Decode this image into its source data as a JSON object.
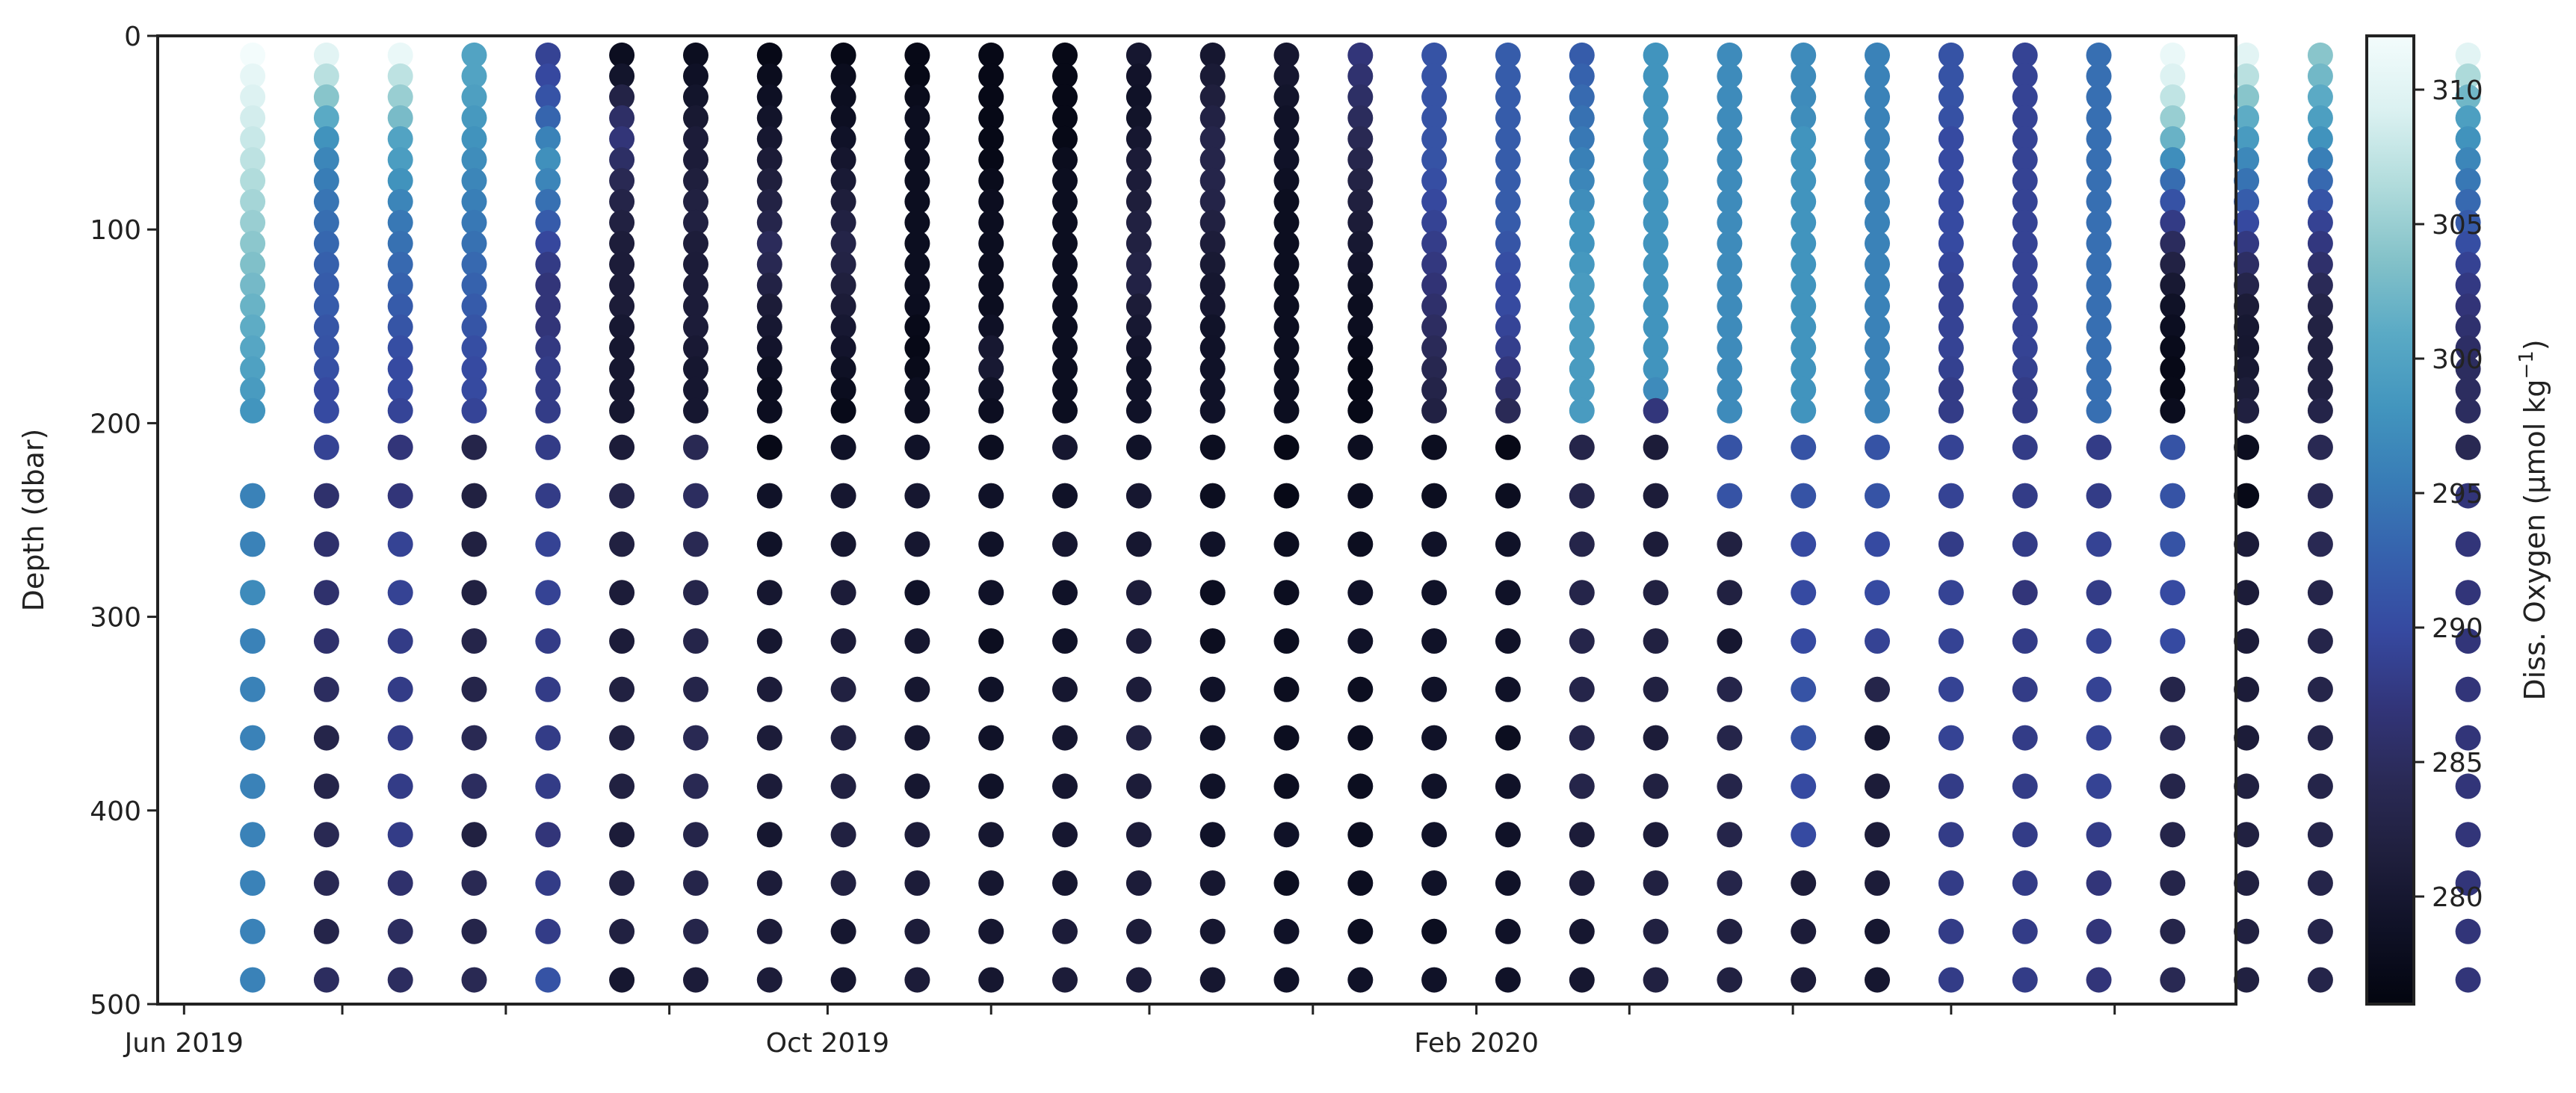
{
  "chart_data": {
    "type": "scatter",
    "title": "",
    "xlabel": "",
    "ylabel": "Depth (dbar)",
    "y_axis_inverted": true,
    "ylim": [
      0,
      500
    ],
    "yticks": [
      0,
      100,
      200,
      300,
      400,
      500
    ],
    "xlim": [
      "2019-05-27",
      "2020-06-24"
    ],
    "xticks_labeled": [
      {
        "date": "2019-06-01",
        "label": "Jun 2019"
      },
      {
        "date": "2019-10-01",
        "label": "Oct 2019"
      },
      {
        "date": "2020-02-01",
        "label": "Feb 2020"
      }
    ],
    "xticks_minor_dates": [
      "2019-07-01",
      "2019-08-01",
      "2019-09-01",
      "2019-11-01",
      "2019-12-01",
      "2020-01-01",
      "2020-03-01",
      "2020-04-01",
      "2020-05-01",
      "2020-06-01"
    ],
    "grid": false,
    "colorbar": {
      "label": "Diss. Oxygen (µmol kg",
      "label_superscript": "−1",
      "label_suffix": ")",
      "range": [
        276,
        312
      ],
      "ticks": [
        280,
        285,
        290,
        295,
        300,
        305,
        310
      ],
      "colormap": [
        "#03050f",
        "#0f1126",
        "#1f1f3d",
        "#2a2a56",
        "#32357a",
        "#3649a0",
        "#3661ad",
        "#387cb6",
        "#4295be",
        "#5aaac5",
        "#84c2c9",
        "#b1dcdc",
        "#dbf1f1",
        "#f3fcfc"
      ]
    },
    "depth_levels": [
      {
        "depth": 212.5,
        "values": [
          null,
          289,
          287,
          283,
          288,
          281,
          284,
          277,
          279,
          279,
          278,
          280,
          279,
          278,
          277,
          278,
          278,
          277,
          283,
          281,
          291,
          291,
          291,
          289,
          288,
          288,
          291,
          278,
          284,
          283,
          284
        ]
      },
      {
        "depth": 237.5,
        "values": [
          296,
          286,
          287,
          282,
          288,
          283,
          285,
          279,
          280,
          280,
          279,
          279,
          280,
          278,
          277,
          278,
          278,
          278,
          283,
          281,
          291,
          291,
          291,
          289,
          288,
          288,
          291,
          277,
          284,
          283,
          287
        ]
      },
      {
        "depth": 262.5,
        "values": [
          296,
          286,
          289,
          282,
          289,
          282,
          284,
          279,
          280,
          280,
          279,
          280,
          280,
          279,
          278,
          278,
          279,
          279,
          283,
          281,
          282,
          290,
          290,
          288,
          288,
          289,
          291,
          281,
          284,
          282,
          287
        ]
      },
      {
        "depth": 287.5,
        "values": [
          297,
          286,
          289,
          282,
          289,
          281,
          283,
          280,
          281,
          279,
          279,
          279,
          281,
          278,
          278,
          279,
          279,
          279,
          283,
          282,
          282,
          290,
          290,
          289,
          287,
          288,
          290,
          281,
          283,
          283,
          287
        ]
      },
      {
        "depth": 312.5,
        "values": [
          296,
          286,
          288,
          283,
          288,
          281,
          283,
          280,
          281,
          280,
          278,
          279,
          281,
          278,
          278,
          279,
          279,
          279,
          283,
          282,
          280,
          290,
          289,
          289,
          288,
          289,
          290,
          281,
          283,
          282,
          287
        ]
      },
      {
        "depth": 337.5,
        "values": [
          296,
          285,
          288,
          283,
          288,
          282,
          283,
          281,
          282,
          280,
          279,
          280,
          281,
          279,
          278,
          278,
          279,
          279,
          283,
          282,
          283,
          291,
          283,
          289,
          288,
          289,
          283,
          281,
          283,
          282,
          287
        ]
      },
      {
        "depth": 362.5,
        "values": [
          296,
          283,
          288,
          284,
          288,
          282,
          284,
          281,
          282,
          280,
          279,
          280,
          282,
          279,
          278,
          278,
          279,
          278,
          283,
          281,
          283,
          291,
          280,
          289,
          288,
          289,
          284,
          281,
          283,
          282,
          287
        ]
      },
      {
        "depth": 387.5,
        "values": [
          296,
          283,
          288,
          285,
          288,
          282,
          284,
          281,
          282,
          280,
          279,
          280,
          281,
          279,
          278,
          278,
          279,
          279,
          283,
          282,
          283,
          290,
          281,
          288,
          288,
          289,
          283,
          282,
          283,
          282,
          287
        ]
      },
      {
        "depth": 412.5,
        "values": [
          296,
          284,
          288,
          282,
          287,
          281,
          283,
          280,
          282,
          281,
          280,
          280,
          281,
          279,
          279,
          278,
          279,
          279,
          281,
          281,
          283,
          290,
          281,
          288,
          288,
          288,
          283,
          282,
          283,
          282,
          287
        ]
      },
      {
        "depth": 437.5,
        "values": [
          296,
          284,
          286,
          284,
          288,
          282,
          283,
          281,
          282,
          281,
          280,
          280,
          281,
          280,
          278,
          278,
          279,
          279,
          281,
          282,
          283,
          281,
          281,
          288,
          288,
          287,
          283,
          282,
          283,
          282,
          287
        ]
      },
      {
        "depth": 462.5,
        "values": [
          296,
          283,
          285,
          283,
          288,
          282,
          283,
          281,
          280,
          281,
          280,
          281,
          281,
          280,
          279,
          278,
          278,
          279,
          280,
          282,
          282,
          281,
          280,
          288,
          288,
          287,
          283,
          282,
          283,
          282,
          287
        ]
      },
      {
        "depth": 487.5,
        "values": [
          296,
          285,
          285,
          284,
          291,
          280,
          281,
          281,
          280,
          281,
          280,
          281,
          281,
          280,
          279,
          279,
          279,
          279,
          280,
          282,
          282,
          281,
          280,
          288,
          288,
          287,
          284,
          282,
          283,
          282,
          287
        ]
      }
    ],
    "profiles": [
      {
        "date": "2019-06-14",
        "upper_to_200": [
          312,
          310,
          309,
          308,
          307,
          306,
          305,
          304,
          303,
          302,
          301,
          300,
          299,
          298
        ]
      },
      {
        "date": "2019-06-28",
        "upper_to_200": [
          310,
          306,
          302,
          298,
          296,
          295,
          294,
          293,
          292,
          292,
          291,
          291,
          290,
          290
        ]
      },
      {
        "date": "2019-07-12",
        "upper_to_200": [
          311,
          306,
          304,
          300,
          299,
          297,
          295,
          294,
          293,
          292,
          291,
          290,
          290,
          289
        ]
      },
      {
        "date": "2019-07-26",
        "upper_to_200": [
          300,
          300,
          299,
          298,
          297,
          296,
          295,
          294,
          293,
          292,
          291,
          290,
          290,
          289
        ]
      },
      {
        "date": "2019-08-09",
        "upper_to_200": [
          289,
          290,
          292,
          296,
          298,
          295,
          292,
          289,
          287,
          287,
          287,
          288,
          288,
          288
        ]
      },
      {
        "date": "2019-08-23",
        "upper_to_200": [
          278,
          280,
          285,
          287,
          285,
          283,
          282,
          281,
          281,
          281,
          280,
          280,
          280,
          280
        ]
      },
      {
        "date": "2019-09-06",
        "upper_to_200": [
          278,
          279,
          280,
          281,
          281,
          282,
          282,
          281,
          281,
          281,
          281,
          280,
          280,
          280
        ]
      },
      {
        "date": "2019-09-20",
        "upper_to_200": [
          277,
          278,
          279,
          280,
          281,
          282,
          283,
          285,
          283,
          281,
          280,
          279,
          278,
          278
        ]
      },
      {
        "date": "2019-10-04",
        "upper_to_200": [
          277,
          278,
          278,
          279,
          280,
          281,
          282,
          283,
          282,
          281,
          280,
          279,
          278,
          277
        ]
      },
      {
        "date": "2019-10-18",
        "upper_to_200": [
          277,
          277,
          278,
          278,
          278,
          278,
          278,
          278,
          278,
          278,
          277,
          277,
          278,
          278
        ]
      },
      {
        "date": "2019-11-01",
        "upper_to_200": [
          277,
          277,
          277,
          277,
          277,
          278,
          278,
          278,
          278,
          278,
          279,
          281,
          279,
          278
        ]
      },
      {
        "date": "2019-11-15",
        "upper_to_200": [
          277,
          277,
          277,
          277,
          278,
          278,
          278,
          278,
          278,
          278,
          278,
          278,
          278,
          278
        ]
      },
      {
        "date": "2019-11-29",
        "upper_to_200": [
          280,
          279,
          279,
          280,
          281,
          281,
          282,
          282,
          283,
          281,
          280,
          279,
          279,
          279
        ]
      },
      {
        "date": "2019-12-13",
        "upper_to_200": [
          280,
          281,
          282,
          283,
          283,
          283,
          282,
          281,
          280,
          280,
          279,
          279,
          279,
          279
        ]
      },
      {
        "date": "2019-12-27",
        "upper_to_200": [
          280,
          280,
          279,
          279,
          279,
          278,
          278,
          278,
          278,
          278,
          278,
          278,
          278,
          278
        ]
      },
      {
        "date": "2020-01-10",
        "upper_to_200": [
          287,
          286,
          285,
          284,
          283,
          282,
          281,
          280,
          279,
          278,
          278,
          277,
          277,
          277
        ]
      },
      {
        "date": "2020-01-24",
        "upper_to_200": [
          291,
          291,
          291,
          291,
          291,
          290,
          289,
          288,
          287,
          286,
          285,
          284,
          283,
          282
        ]
      },
      {
        "date": "2020-02-07",
        "upper_to_200": [
          292,
          292,
          292,
          292,
          292,
          292,
          292,
          291,
          290,
          290,
          289,
          288,
          286,
          284
        ]
      },
      {
        "date": "2020-02-21",
        "upper_to_200": [
          292,
          293,
          294,
          295,
          296,
          297,
          298,
          298,
          299,
          299,
          299,
          299,
          299,
          299
        ]
      },
      {
        "date": "2020-03-06",
        "upper_to_200": [
          298,
          298,
          298,
          298,
          298,
          298,
          298,
          298,
          298,
          298,
          298,
          298,
          298,
          285
        ]
      },
      {
        "date": "2020-03-20",
        "upper_to_200": [
          297,
          297,
          297,
          297,
          297,
          297,
          297,
          297,
          297,
          297,
          297,
          297,
          297,
          297
        ]
      },
      {
        "date": "2020-04-03",
        "upper_to_200": [
          297,
          297,
          297,
          298,
          298,
          298,
          298,
          298,
          298,
          298,
          298,
          298,
          298,
          298
        ]
      },
      {
        "date": "2020-04-17",
        "upper_to_200": [
          296,
          296,
          296,
          296,
          296,
          296,
          296,
          296,
          296,
          296,
          296,
          296,
          296,
          296
        ]
      },
      {
        "date": "2020-05-01",
        "upper_to_200": [
          291,
          291,
          291,
          290,
          290,
          290,
          290,
          290,
          289,
          289,
          289,
          289,
          288,
          288
        ]
      },
      {
        "date": "2020-05-15",
        "upper_to_200": [
          289,
          289,
          289,
          289,
          289,
          289,
          289,
          289,
          289,
          289,
          289,
          289,
          288,
          288
        ]
      },
      {
        "date": "2020-05-29",
        "upper_to_200": [
          294,
          294,
          294,
          294,
          294,
          294,
          294,
          294,
          294,
          294,
          294,
          294,
          294,
          294
        ]
      },
      {
        "date": "2020-06-12",
        "upper_to_200": [
          311,
          309,
          306,
          302,
          296,
          292,
          288,
          284,
          281,
          279,
          278,
          277,
          277,
          278
        ]
      },
      {
        "date": "2020-06-26",
        "upper_to_200": [
          310,
          306,
          302,
          299,
          296,
          293,
          290,
          287,
          284,
          281,
          280,
          280,
          281,
          282
        ]
      },
      {
        "date": "2020-07-10",
        "upper_to_200": [
          304,
          302,
          300,
          298,
          295,
          292,
          289,
          287,
          285,
          283,
          282,
          282,
          282,
          283
        ]
      },
      {
        "date": "2020-07-24",
        "upper_to_200": [
          307,
          303,
          300,
          298,
          296,
          293,
          291,
          289,
          287,
          286,
          285,
          285,
          286,
          286
        ]
      },
      {
        "date": "2020-08-07",
        "upper_to_200": [
          310,
          305,
          300,
          298,
          296,
          294,
          292,
          290,
          288,
          287,
          286,
          285,
          285,
          285
        ]
      }
    ]
  }
}
